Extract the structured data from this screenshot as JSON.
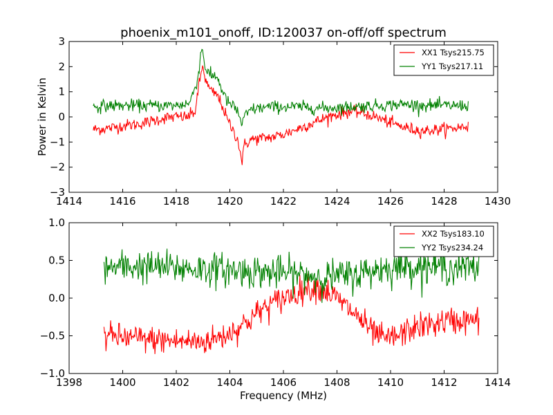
{
  "figure": {
    "title": "phoenix_m101_onoff, ID:120037 on-off/off spectrum",
    "ylabel": "Power in Kelvin",
    "xlabel": "Frequency (MHz)"
  },
  "chart_data": [
    {
      "type": "line",
      "title": "phoenix_m101_onoff, ID:120037 on-off/off spectrum",
      "xlabel": "",
      "ylabel": "Power in Kelvin",
      "xlim": [
        1414,
        1430
      ],
      "ylim": [
        -3,
        3
      ],
      "xticks": [
        "1414",
        "1416",
        "1418",
        "1420",
        "1422",
        "1424",
        "1426",
        "1428",
        "1430"
      ],
      "yticks": [
        "3",
        "2",
        "1",
        "0",
        "−1",
        "−2",
        "−3"
      ],
      "grid": false,
      "legend": "top-right",
      "x_range": [
        1414.9,
        1428.9
      ],
      "series": [
        {
          "name": "XX1 Tsys215.75",
          "color": "#ff0000",
          "noise": 0.12,
          "points": [
            [
              1414.9,
              -0.5
            ],
            [
              1415.5,
              -0.45
            ],
            [
              1416.0,
              -0.35
            ],
            [
              1416.5,
              -0.3
            ],
            [
              1417.0,
              -0.2
            ],
            [
              1417.5,
              -0.05
            ],
            [
              1418.0,
              0.0
            ],
            [
              1418.4,
              0.0
            ],
            [
              1418.7,
              0.2
            ],
            [
              1418.9,
              1.6
            ],
            [
              1419.0,
              2.05
            ],
            [
              1419.1,
              1.4
            ],
            [
              1419.3,
              1.0
            ],
            [
              1419.5,
              0.9
            ],
            [
              1419.7,
              0.5
            ],
            [
              1419.9,
              -0.1
            ],
            [
              1420.1,
              -0.5
            ],
            [
              1420.3,
              -0.9
            ],
            [
              1420.45,
              -1.8
            ],
            [
              1420.55,
              -1.1
            ],
            [
              1420.8,
              -0.9
            ],
            [
              1421.2,
              -0.85
            ],
            [
              1421.6,
              -0.8
            ],
            [
              1422.0,
              -0.7
            ],
            [
              1422.6,
              -0.45
            ],
            [
              1423.2,
              -0.2
            ],
            [
              1423.8,
              0.05
            ],
            [
              1424.4,
              0.2
            ],
            [
              1424.8,
              0.2
            ],
            [
              1425.3,
              0.05
            ],
            [
              1425.8,
              -0.15
            ],
            [
              1426.3,
              -0.35
            ],
            [
              1426.8,
              -0.5
            ],
            [
              1427.3,
              -0.55
            ],
            [
              1427.8,
              -0.5
            ],
            [
              1428.4,
              -0.45
            ],
            [
              1428.9,
              -0.35
            ]
          ]
        },
        {
          "name": "YY1 Tsys217.11",
          "color": "#008000",
          "noise": 0.12,
          "points": [
            [
              1414.9,
              0.4
            ],
            [
              1415.5,
              0.45
            ],
            [
              1416.0,
              0.45
            ],
            [
              1417.0,
              0.45
            ],
            [
              1418.0,
              0.45
            ],
            [
              1418.5,
              0.55
            ],
            [
              1418.8,
              1.5
            ],
            [
              1418.95,
              2.8
            ],
            [
              1419.1,
              1.9
            ],
            [
              1419.3,
              1.6
            ],
            [
              1419.5,
              1.65
            ],
            [
              1419.7,
              1.1
            ],
            [
              1419.9,
              0.6
            ],
            [
              1420.1,
              0.45
            ],
            [
              1420.3,
              0.2
            ],
            [
              1420.45,
              -0.3
            ],
            [
              1420.55,
              0.0
            ],
            [
              1420.8,
              0.3
            ],
            [
              1421.5,
              0.4
            ],
            [
              1422.5,
              0.4
            ],
            [
              1423.5,
              0.35
            ],
            [
              1424.5,
              0.4
            ],
            [
              1425.5,
              0.45
            ],
            [
              1426.5,
              0.5
            ],
            [
              1427.5,
              0.45
            ],
            [
              1428.9,
              0.45
            ]
          ]
        }
      ]
    },
    {
      "type": "line",
      "title": "",
      "xlabel": "Frequency (MHz)",
      "ylabel": "",
      "xlim": [
        1398,
        1414
      ],
      "ylim": [
        -1.0,
        1.0
      ],
      "xticks": [
        "1398",
        "1400",
        "1402",
        "1404",
        "1406",
        "1408",
        "1410",
        "1412",
        "1414"
      ],
      "yticks": [
        "1.0",
        "0.5",
        "0.0",
        "−0.5",
        "−1.0"
      ],
      "grid": false,
      "legend": "top-right",
      "x_range": [
        1399.3,
        1413.3
      ],
      "series": [
        {
          "name": "XX2 Tsys183.10",
          "color": "#ff0000",
          "noise": 0.09,
          "points": [
            [
              1399.3,
              -0.5
            ],
            [
              1400.0,
              -0.52
            ],
            [
              1401.0,
              -0.55
            ],
            [
              1402.0,
              -0.57
            ],
            [
              1403.0,
              -0.58
            ],
            [
              1403.8,
              -0.5
            ],
            [
              1404.5,
              -0.35
            ],
            [
              1405.2,
              -0.15
            ],
            [
              1406.0,
              0.0
            ],
            [
              1406.8,
              0.12
            ],
            [
              1407.3,
              0.15
            ],
            [
              1407.8,
              0.05
            ],
            [
              1408.3,
              -0.1
            ],
            [
              1408.8,
              -0.25
            ],
            [
              1409.3,
              -0.45
            ],
            [
              1409.8,
              -0.55
            ],
            [
              1410.3,
              -0.5
            ],
            [
              1410.8,
              -0.4
            ],
            [
              1411.5,
              -0.35
            ],
            [
              1412.2,
              -0.3
            ],
            [
              1412.8,
              -0.3
            ],
            [
              1413.3,
              -0.3
            ]
          ]
        },
        {
          "name": "YY2 Tsys234.24",
          "color": "#008000",
          "noise": 0.11,
          "points": [
            [
              1399.3,
              0.4
            ],
            [
              1400.5,
              0.42
            ],
            [
              1402.0,
              0.4
            ],
            [
              1403.5,
              0.38
            ],
            [
              1405.0,
              0.35
            ],
            [
              1406.5,
              0.32
            ],
            [
              1407.5,
              0.28
            ],
            [
              1408.5,
              0.3
            ],
            [
              1409.5,
              0.38
            ],
            [
              1410.5,
              0.42
            ],
            [
              1411.5,
              0.42
            ],
            [
              1412.5,
              0.4
            ],
            [
              1413.3,
              0.4
            ]
          ]
        }
      ]
    }
  ]
}
